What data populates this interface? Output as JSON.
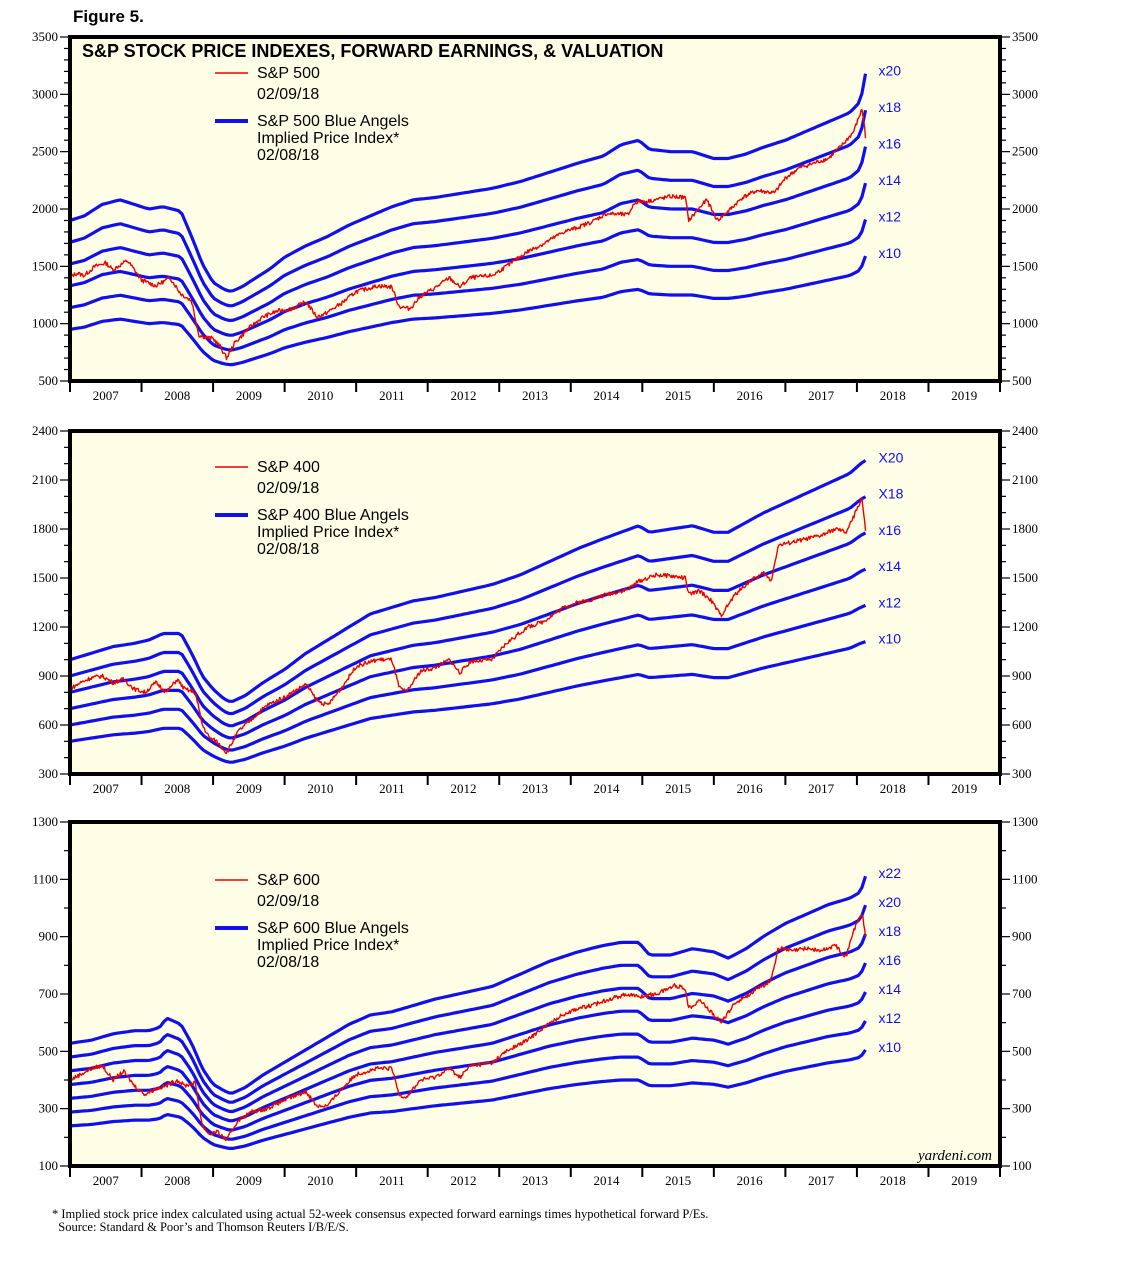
{
  "figure_label": "Figure 5.",
  "footnote": {
    "line1": "* Implied stock price index calculated using actual 52-week consensus expected forward earnings times hypothetical forward P/Es.",
    "line2": "  Source: Standard & Poor’s and Thomson Reuters I/B/E/S."
  },
  "watermark": "yardeni.com",
  "colors": {
    "price": "#ee0000",
    "implied": "#1010ee",
    "plot_bg": "#fefee6",
    "frame": "#000000"
  },
  "chart_data": [
    {
      "type": "line",
      "title": "S&P STOCK PRICE INDEXES, FORWARD EARNINGS, & VALUATION",
      "xlabel": "",
      "ylabel": "",
      "xlim": [
        2007,
        2020
      ],
      "ylim": [
        500,
        3500
      ],
      "yticks_major": [
        500,
        1000,
        1500,
        2000,
        2500,
        3000,
        3500
      ],
      "ytick_minor_step": 100,
      "xtick_labels": [
        "2007",
        "2008",
        "2009",
        "2010",
        "2011",
        "2012",
        "2013",
        "2014",
        "2015",
        "2016",
        "2017",
        "2018",
        "2019"
      ],
      "legend": [
        {
          "series": "price",
          "label": "S&P 500",
          "date": "02/09/18"
        },
        {
          "series": "implied",
          "label": "S&P 500 Blue Angels",
          "label2": "Implied Price Index*",
          "date": "02/08/18"
        }
      ],
      "multiples": [
        10,
        12,
        14,
        16,
        18,
        20
      ],
      "multiple_labels": [
        "x10",
        "x12",
        "x14",
        "x16",
        "x18",
        "x20"
      ],
      "forward_earnings": {
        "x": [
          2007.0,
          2007.2,
          2007.45,
          2007.7,
          2007.9,
          2008.1,
          2008.3,
          2008.55,
          2008.7,
          2008.85,
          2009.0,
          2009.15,
          2009.25,
          2009.4,
          2009.6,
          2009.8,
          2010.0,
          2010.3,
          2010.6,
          2010.9,
          2011.2,
          2011.5,
          2011.8,
          2012.1,
          2012.5,
          2012.9,
          2013.3,
          2013.7,
          2014.1,
          2014.45,
          2014.7,
          2014.95,
          2015.1,
          2015.4,
          2015.7,
          2016.0,
          2016.2,
          2016.45,
          2016.7,
          2017.0,
          2017.3,
          2017.6,
          2017.9,
          2018.05,
          2018.12
        ],
        "values": [
          95,
          97,
          102,
          104,
          102,
          100,
          101,
          99,
          88,
          76,
          68,
          65,
          64,
          66,
          70,
          74,
          79,
          84,
          88,
          93,
          97,
          101,
          104,
          105,
          107,
          109,
          112,
          116,
          120,
          123,
          128,
          130,
          126,
          125,
          125,
          122,
          122,
          124,
          127,
          130,
          134,
          138,
          142,
          147,
          159
        ]
      },
      "price": {
        "x": [
          2007.0,
          2007.1,
          2007.2,
          2007.35,
          2007.5,
          2007.6,
          2007.8,
          2007.9,
          2008.0,
          2008.2,
          2008.4,
          2008.55,
          2008.7,
          2008.8,
          2008.9,
          2009.0,
          2009.1,
          2009.19,
          2009.3,
          2009.5,
          2009.7,
          2009.9,
          2010.1,
          2010.3,
          2010.45,
          2010.55,
          2010.8,
          2011.0,
          2011.3,
          2011.5,
          2011.6,
          2011.75,
          2011.9,
          2012.1,
          2012.3,
          2012.45,
          2012.6,
          2012.9,
          2013.1,
          2013.4,
          2013.6,
          2013.9,
          2014.1,
          2014.3,
          2014.5,
          2014.8,
          2014.9,
          2015.1,
          2015.4,
          2015.6,
          2015.65,
          2015.8,
          2015.9,
          2016.05,
          2016.2,
          2016.4,
          2016.6,
          2016.85,
          2017.0,
          2017.2,
          2017.4,
          2017.6,
          2017.8,
          2017.95,
          2018.07,
          2018.1,
          2018.12
        ],
        "values": [
          1410,
          1440,
          1420,
          1500,
          1530,
          1470,
          1550,
          1470,
          1380,
          1330,
          1400,
          1260,
          1200,
          900,
          880,
          870,
          800,
          700,
          830,
          960,
          1060,
          1110,
          1130,
          1190,
          1060,
          1080,
          1180,
          1280,
          1330,
          1320,
          1150,
          1130,
          1240,
          1310,
          1400,
          1320,
          1400,
          1420,
          1500,
          1630,
          1690,
          1800,
          1840,
          1890,
          1960,
          1950,
          2060,
          2070,
          2110,
          2100,
          1900,
          2010,
          2080,
          1900,
          1980,
          2100,
          2160,
          2140,
          2270,
          2360,
          2400,
          2440,
          2560,
          2670,
          2870,
          2760,
          2620
        ]
      }
    },
    {
      "type": "line",
      "title": "",
      "xlim": [
        2007,
        2020
      ],
      "ylim": [
        300,
        2400
      ],
      "yticks_major": [
        300,
        600,
        900,
        1200,
        1500,
        1800,
        2100,
        2400
      ],
      "ytick_minor_step": 100,
      "xtick_labels": [
        "2007",
        "2008",
        "2009",
        "2010",
        "2011",
        "2012",
        "2013",
        "2014",
        "2015",
        "2016",
        "2017",
        "2018",
        "2019"
      ],
      "legend": [
        {
          "series": "price",
          "label": "S&P 400",
          "date": "02/09/18"
        },
        {
          "series": "implied",
          "label": "S&P 400 Blue Angels",
          "label2": "Implied Price Index*",
          "date": "02/08/18"
        }
      ],
      "multiples": [
        10,
        12,
        14,
        16,
        18,
        20
      ],
      "multiple_labels": [
        "x10",
        "x12",
        "x14",
        "x16",
        "X18",
        "X20"
      ],
      "forward_earnings": {
        "x": [
          2007.0,
          2007.3,
          2007.6,
          2007.9,
          2008.1,
          2008.3,
          2008.55,
          2008.7,
          2008.85,
          2009.0,
          2009.15,
          2009.25,
          2009.45,
          2009.7,
          2010.0,
          2010.3,
          2010.6,
          2010.9,
          2011.2,
          2011.5,
          2011.8,
          2012.1,
          2012.5,
          2012.9,
          2013.3,
          2013.7,
          2014.1,
          2014.45,
          2014.7,
          2014.95,
          2015.1,
          2015.4,
          2015.7,
          2016.0,
          2016.2,
          2016.45,
          2016.7,
          2017.0,
          2017.3,
          2017.6,
          2017.9,
          2018.05,
          2018.12
        ],
        "values": [
          50,
          52,
          54,
          55,
          56,
          58,
          58,
          52,
          45,
          41,
          38,
          37,
          39,
          43,
          47,
          52,
          56,
          60,
          64,
          66,
          68,
          69,
          71,
          73,
          76,
          80,
          84,
          87,
          89,
          91,
          89,
          90,
          91,
          89,
          89,
          92,
          95,
          98,
          101,
          104,
          107,
          110,
          111
        ]
      },
      "price": {
        "x": [
          2007.0,
          2007.15,
          2007.3,
          2007.45,
          2007.6,
          2007.75,
          2007.9,
          2008.05,
          2008.2,
          2008.35,
          2008.5,
          2008.6,
          2008.75,
          2008.85,
          2008.95,
          2009.05,
          2009.19,
          2009.35,
          2009.55,
          2009.75,
          2010.0,
          2010.3,
          2010.45,
          2010.6,
          2010.8,
          2011.0,
          2011.3,
          2011.5,
          2011.6,
          2011.7,
          2011.9,
          2012.1,
          2012.3,
          2012.45,
          2012.6,
          2012.9,
          2013.1,
          2013.4,
          2013.6,
          2013.9,
          2014.1,
          2014.3,
          2014.5,
          2014.8,
          2014.95,
          2015.2,
          2015.45,
          2015.6,
          2015.65,
          2015.8,
          2015.95,
          2016.1,
          2016.3,
          2016.5,
          2016.7,
          2016.8,
          2016.9,
          2017.1,
          2017.3,
          2017.5,
          2017.7,
          2017.85,
          2017.95,
          2018.07,
          2018.1,
          2018.12
        ],
        "values": [
          820,
          860,
          890,
          900,
          860,
          880,
          820,
          800,
          860,
          800,
          880,
          820,
          800,
          600,
          520,
          500,
          430,
          560,
          640,
          720,
          770,
          850,
          750,
          720,
          830,
          960,
          1000,
          1000,
          830,
          800,
          930,
          950,
          1000,
          920,
          990,
          1000,
          1100,
          1200,
          1230,
          1320,
          1350,
          1370,
          1400,
          1430,
          1480,
          1520,
          1510,
          1500,
          1400,
          1420,
          1370,
          1270,
          1400,
          1480,
          1530,
          1480,
          1700,
          1720,
          1740,
          1760,
          1800,
          1780,
          1870,
          1990,
          1880,
          1790
        ]
      }
    },
    {
      "type": "line",
      "title": "",
      "xlim": [
        2007,
        2020
      ],
      "ylim": [
        100,
        1300
      ],
      "yticks_major": [
        100,
        300,
        500,
        700,
        900,
        1100,
        1300
      ],
      "ytick_minor_step": 100,
      "xtick_labels": [
        "2007",
        "2008",
        "2009",
        "2010",
        "2011",
        "2012",
        "2013",
        "2014",
        "2015",
        "2016",
        "2017",
        "2018",
        "2019"
      ],
      "legend": [
        {
          "series": "price",
          "label": "S&P 600",
          "date": "02/09/18"
        },
        {
          "series": "implied",
          "label": "S&P 600 Blue Angels",
          "label2": "Implied Price Index*",
          "date": "02/08/18"
        }
      ],
      "multiples": [
        10,
        12,
        14,
        16,
        18,
        20,
        22
      ],
      "multiple_labels": [
        "x10",
        "x12",
        "x14",
        "x16",
        "x18",
        "x20",
        "x22"
      ],
      "forward_earnings": {
        "x": [
          2007.0,
          2007.3,
          2007.6,
          2007.9,
          2008.1,
          2008.25,
          2008.35,
          2008.55,
          2008.7,
          2008.85,
          2009.0,
          2009.15,
          2009.25,
          2009.45,
          2009.7,
          2010.0,
          2010.3,
          2010.6,
          2010.9,
          2011.2,
          2011.5,
          2011.8,
          2012.1,
          2012.5,
          2012.9,
          2013.3,
          2013.7,
          2014.1,
          2014.45,
          2014.7,
          2014.95,
          2015.1,
          2015.4,
          2015.7,
          2016.0,
          2016.2,
          2016.45,
          2016.7,
          2017.0,
          2017.3,
          2017.6,
          2017.9,
          2018.05,
          2018.12
        ],
        "values": [
          24,
          24.5,
          25.5,
          26,
          26,
          26.5,
          28,
          27,
          24,
          20,
          17.5,
          16.5,
          16,
          17,
          19,
          21,
          23,
          25,
          27,
          28.5,
          29,
          30,
          31,
          32,
          33,
          35,
          37,
          38.5,
          39.5,
          40,
          40,
          38,
          38,
          39,
          38.5,
          37.5,
          39,
          41,
          43,
          44.5,
          46,
          47,
          48,
          50.5
        ]
      },
      "price": {
        "x": [
          2007.0,
          2007.15,
          2007.3,
          2007.45,
          2007.6,
          2007.75,
          2007.9,
          2008.05,
          2008.2,
          2008.35,
          2008.5,
          2008.6,
          2008.75,
          2008.85,
          2008.95,
          2009.05,
          2009.19,
          2009.35,
          2009.55,
          2009.75,
          2010.0,
          2010.3,
          2010.45,
          2010.6,
          2010.8,
          2011.0,
          2011.3,
          2011.5,
          2011.6,
          2011.7,
          2011.9,
          2012.1,
          2012.3,
          2012.45,
          2012.6,
          2012.9,
          2013.1,
          2013.4,
          2013.6,
          2013.9,
          2014.1,
          2014.3,
          2014.5,
          2014.8,
          2014.95,
          2015.2,
          2015.45,
          2015.6,
          2015.65,
          2015.8,
          2015.95,
          2016.1,
          2016.3,
          2016.5,
          2016.7,
          2016.8,
          2016.9,
          2017.1,
          2017.3,
          2017.5,
          2017.7,
          2017.85,
          2017.95,
          2018.07,
          2018.1,
          2018.12
        ],
        "values": [
          400,
          420,
          440,
          450,
          400,
          430,
          380,
          350,
          370,
          380,
          400,
          380,
          390,
          240,
          210,
          220,
          190,
          260,
          290,
          300,
          330,
          360,
          310,
          310,
          370,
          420,
          440,
          440,
          350,
          340,
          400,
          410,
          440,
          410,
          450,
          460,
          500,
          540,
          580,
          630,
          650,
          660,
          680,
          700,
          690,
          700,
          730,
          720,
          650,
          680,
          640,
          600,
          670,
          700,
          730,
          750,
          860,
          850,
          860,
          850,
          870,
          830,
          920,
          980,
          940,
          900
        ]
      }
    }
  ]
}
